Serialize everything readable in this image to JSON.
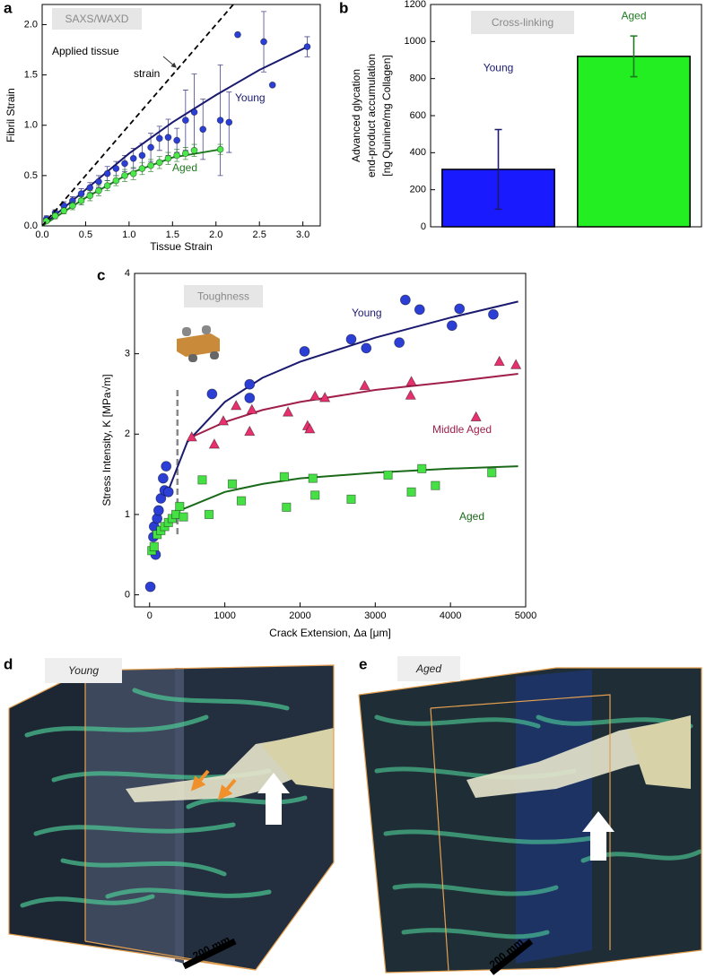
{
  "chart_data": [
    {
      "type": "scatter",
      "panel_label": "a",
      "annotation_box": "SAXS/WAXD",
      "annotation": [
        "Applied tissue",
        "strain"
      ],
      "xlabel": "Tissue Strain",
      "ylabel": "Fibril Strain",
      "xlim": [
        0,
        3.2
      ],
      "ylim": [
        0,
        2.2
      ],
      "xticks": [
        {
          "value": 0,
          "label": "0.0"
        },
        {
          "value": 0.5,
          "label": "0.5"
        },
        {
          "value": 1,
          "label": "1.0"
        },
        {
          "value": 1.5,
          "label": "1.5"
        },
        {
          "value": 2,
          "label": "2.0"
        },
        {
          "value": 2.5,
          "label": "2.5"
        },
        {
          "value": 3,
          "label": "3.0"
        }
      ],
      "yticks": [
        {
          "value": 0,
          "label": "0.0"
        },
        {
          "value": 0.5,
          "label": "0.5"
        },
        {
          "value": 1,
          "label": "1.0"
        },
        {
          "value": 1.5,
          "label": "1.5"
        },
        {
          "value": 2,
          "label": "2.0"
        }
      ],
      "series": [
        {
          "name": "Young",
          "color": "#2b3fd6",
          "line_color": "#1a1a70",
          "marker": "circle",
          "x": [
            0.05,
            0.15,
            0.25,
            0.35,
            0.45,
            0.55,
            0.65,
            0.75,
            0.85,
            0.95,
            1.05,
            1.15,
            1.25,
            1.35,
            1.45,
            1.55,
            1.65,
            1.75,
            1.85,
            2.05,
            2.15,
            2.25,
            2.55,
            2.65,
            3.05
          ],
          "values": [
            0.07,
            0.13,
            0.2,
            0.25,
            0.32,
            0.38,
            0.44,
            0.52,
            0.57,
            0.62,
            0.67,
            0.7,
            0.78,
            0.87,
            0.88,
            0.85,
            1.05,
            1.13,
            0.96,
            1.05,
            1.03,
            1.9,
            1.83,
            1.4,
            1.78
          ],
          "errors": [
            0.03,
            0.03,
            0.04,
            0.04,
            0.05,
            0.05,
            0.06,
            0.07,
            0.07,
            0.08,
            0.1,
            0.12,
            0.14,
            0.12,
            0.18,
            0.12,
            0.3,
            0.38,
            0.3,
            0.55,
            0.3,
            null,
            0.3,
            null,
            0.1
          ],
          "fit_x": [
            0,
            0.5,
            1,
            1.5,
            2,
            2.5,
            3.05
          ],
          "fit_values": [
            0,
            0.36,
            0.72,
            1.03,
            1.3,
            1.55,
            1.78
          ]
        },
        {
          "name": "Aged",
          "color": "#4be84b",
          "line_color": "#1f7a1f",
          "marker": "circle",
          "x": [
            0.05,
            0.15,
            0.25,
            0.35,
            0.45,
            0.55,
            0.65,
            0.75,
            0.85,
            0.95,
            1.05,
            1.15,
            1.25,
            1.35,
            1.45,
            1.55,
            1.65,
            1.75,
            2.05
          ],
          "values": [
            0.05,
            0.1,
            0.15,
            0.2,
            0.25,
            0.3,
            0.35,
            0.4,
            0.45,
            0.5,
            0.52,
            0.57,
            0.6,
            0.63,
            0.67,
            0.7,
            0.72,
            0.75,
            0.76
          ],
          "errors": [
            0.02,
            0.03,
            0.03,
            0.04,
            0.04,
            0.05,
            0.05,
            0.05,
            0.05,
            0.06,
            0.06,
            0.06,
            0.06,
            0.06,
            0.06,
            0.06,
            0.06,
            0.06,
            0.05
          ],
          "fit_x": [
            0,
            0.5,
            1,
            1.5,
            2.05
          ],
          "fit_values": [
            0,
            0.28,
            0.52,
            0.68,
            0.76
          ]
        },
        {
          "color": "#000000",
          "dashed": true,
          "x": [
            0,
            2.2
          ],
          "values": [
            0,
            2.2
          ]
        }
      ]
    },
    {
      "type": "bar",
      "panel_label": "b",
      "annotation_box": "Cross-linking",
      "ylabel": [
        "Advanced glycation",
        "end-product accumulation",
        "[ng Quinine/mg Collagen]"
      ],
      "categories": [
        "Young",
        "Aged"
      ],
      "values": [
        310,
        920
      ],
      "errors": [
        215,
        110
      ],
      "colors": [
        "#1a1aff",
        "#22ee22"
      ],
      "label_colors": [
        "#1a1a70",
        "#1f7a1f"
      ],
      "ylim": [
        0,
        1200
      ],
      "yticks": [
        0,
        200,
        400,
        600,
        800,
        1000,
        1200
      ]
    },
    {
      "type": "scatter",
      "panel_label": "c",
      "annotation_box": "Toughness",
      "xlabel": "Crack Extension, Δa [μm]",
      "ylabel": "Stress Intensity, K [MPa√m]",
      "xlim": [
        -200,
        5000
      ],
      "ylim": [
        -0.15,
        4
      ],
      "xticks": [
        0,
        1000,
        2000,
        3000,
        4000,
        5000
      ],
      "yticks": [
        0,
        1,
        2,
        3,
        4
      ],
      "vline_x": 370,
      "series": [
        {
          "name": "Young",
          "color": "#2b3fd6",
          "line_color": "#1a1a70",
          "marker": "circle",
          "x": [
            10,
            50,
            80,
            60,
            100,
            120,
            150,
            200,
            180,
            220,
            250,
            830,
            1330,
            1330,
            2060,
            2680,
            2880,
            3320,
            3400,
            3590,
            4020,
            4120,
            4570
          ],
          "values": [
            0.1,
            0.72,
            0.5,
            0.85,
            0.95,
            1.05,
            1.2,
            1.3,
            1.45,
            1.6,
            1.28,
            2.5,
            2.62,
            2.45,
            3.03,
            3.18,
            3.07,
            3.14,
            3.67,
            3.55,
            3.35,
            3.56,
            3.49
          ],
          "fit_x": [
            250,
            500,
            1000,
            1500,
            2000,
            3000,
            4000,
            4900
          ],
          "fit_values": [
            1.3,
            1.9,
            2.4,
            2.7,
            2.9,
            3.2,
            3.45,
            3.65
          ]
        },
        {
          "name": "Middle Aged",
          "color": "#e8306e",
          "line_color": "#a0204a",
          "marker": "triangle",
          "x": [
            560,
            860,
            980,
            1150,
            1330,
            1360,
            1840,
            2100,
            2130,
            2200,
            2330,
            2860,
            3470,
            3480,
            4340,
            4650,
            4870
          ],
          "values": [
            1.96,
            1.87,
            2.16,
            2.35,
            2.03,
            2.3,
            2.27,
            2.1,
            2.06,
            2.47,
            2.45,
            2.6,
            2.48,
            2.65,
            2.21,
            2.9,
            2.86
          ],
          "fit_x": [
            550,
            1000,
            1500,
            2000,
            3000,
            4000,
            4900
          ],
          "fit_values": [
            1.96,
            2.15,
            2.3,
            2.4,
            2.55,
            2.65,
            2.75
          ]
        },
        {
          "name": "Aged",
          "color": "#44e044",
          "line_color": "#1a6a1a",
          "marker": "square",
          "x": [
            30,
            60,
            100,
            150,
            200,
            250,
            300,
            350,
            400,
            450,
            700,
            790,
            1100,
            1220,
            1790,
            1820,
            2170,
            2200,
            2680,
            3170,
            3480,
            3620,
            3800,
            4550
          ],
          "values": [
            0.55,
            0.6,
            0.75,
            0.8,
            0.85,
            0.9,
            0.95,
            1.0,
            1.1,
            0.97,
            1.43,
            1.0,
            1.38,
            1.17,
            1.47,
            1.09,
            1.45,
            1.24,
            1.19,
            1.49,
            1.28,
            1.57,
            1.36,
            1.52
          ],
          "fit_x": [
            400,
            1000,
            1500,
            2000,
            3000,
            4000,
            4900
          ],
          "fit_values": [
            1.05,
            1.28,
            1.38,
            1.45,
            1.52,
            1.57,
            1.6
          ]
        }
      ]
    }
  ],
  "image_panels": [
    {
      "label": "d",
      "title": "Young",
      "scale_bar": "200 mm"
    },
    {
      "label": "e",
      "title": "Aged",
      "scale_bar": "200 mm"
    }
  ]
}
